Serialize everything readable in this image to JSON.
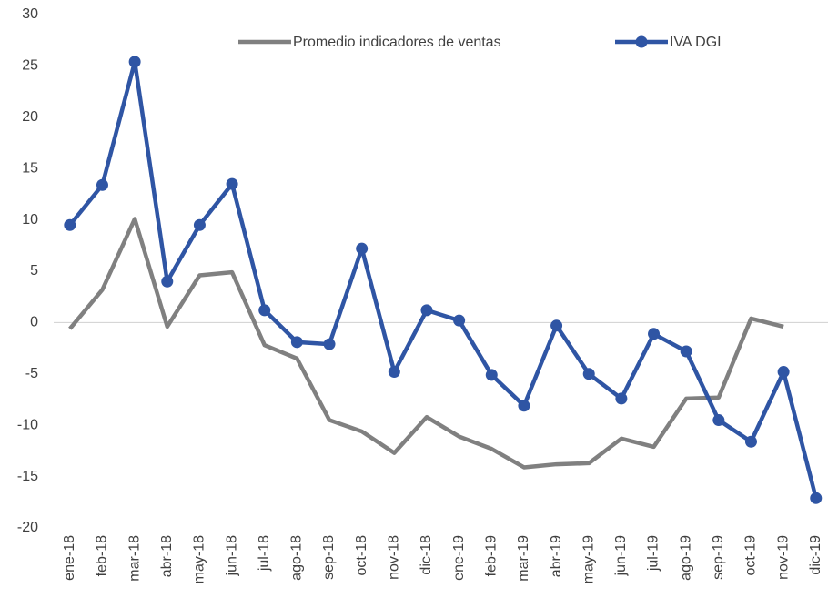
{
  "chart_data": {
    "type": "line",
    "categories": [
      "ene-18",
      "feb-18",
      "mar-18",
      "abr-18",
      "may-18",
      "jun-18",
      "jul-18",
      "ago-18",
      "sep-18",
      "oct-18",
      "nov-18",
      "dic-18",
      "ene-19",
      "feb-19",
      "mar-19",
      "abr-19",
      "may-19",
      "jun-19",
      "jul-19",
      "ago-19",
      "sep-19",
      "oct-19",
      "nov-19",
      "dic-19"
    ],
    "series": [
      {
        "name": "Promedio indicadores de ventas",
        "color": "#808080",
        "marker": false,
        "values": [
          -0.6,
          3.2,
          10.1,
          -0.4,
          4.6,
          4.9,
          -2.2,
          -3.5,
          -9.5,
          -10.6,
          -12.7,
          -9.2,
          -11.1,
          -12.3,
          -14.1,
          -13.8,
          -13.7,
          -11.3,
          -12.1,
          -7.4,
          -7.3,
          0.4,
          -0.4,
          null
        ]
      },
      {
        "name": "IVA DGI",
        "color": "#2f55a4",
        "marker": true,
        "values": [
          9.5,
          13.4,
          25.4,
          4.0,
          9.5,
          13.5,
          1.2,
          -1.9,
          -2.1,
          7.2,
          -4.8,
          1.2,
          0.2,
          -5.1,
          -8.1,
          -0.3,
          -5.0,
          -7.4,
          -1.1,
          -2.8,
          -9.5,
          -11.6,
          -4.8,
          -17.1
        ]
      }
    ],
    "ylim": [
      -20,
      30
    ],
    "yticks": [
      -20,
      -15,
      -10,
      -5,
      0,
      5,
      10,
      15,
      20,
      25,
      30
    ],
    "grid": false,
    "legend": "top"
  }
}
